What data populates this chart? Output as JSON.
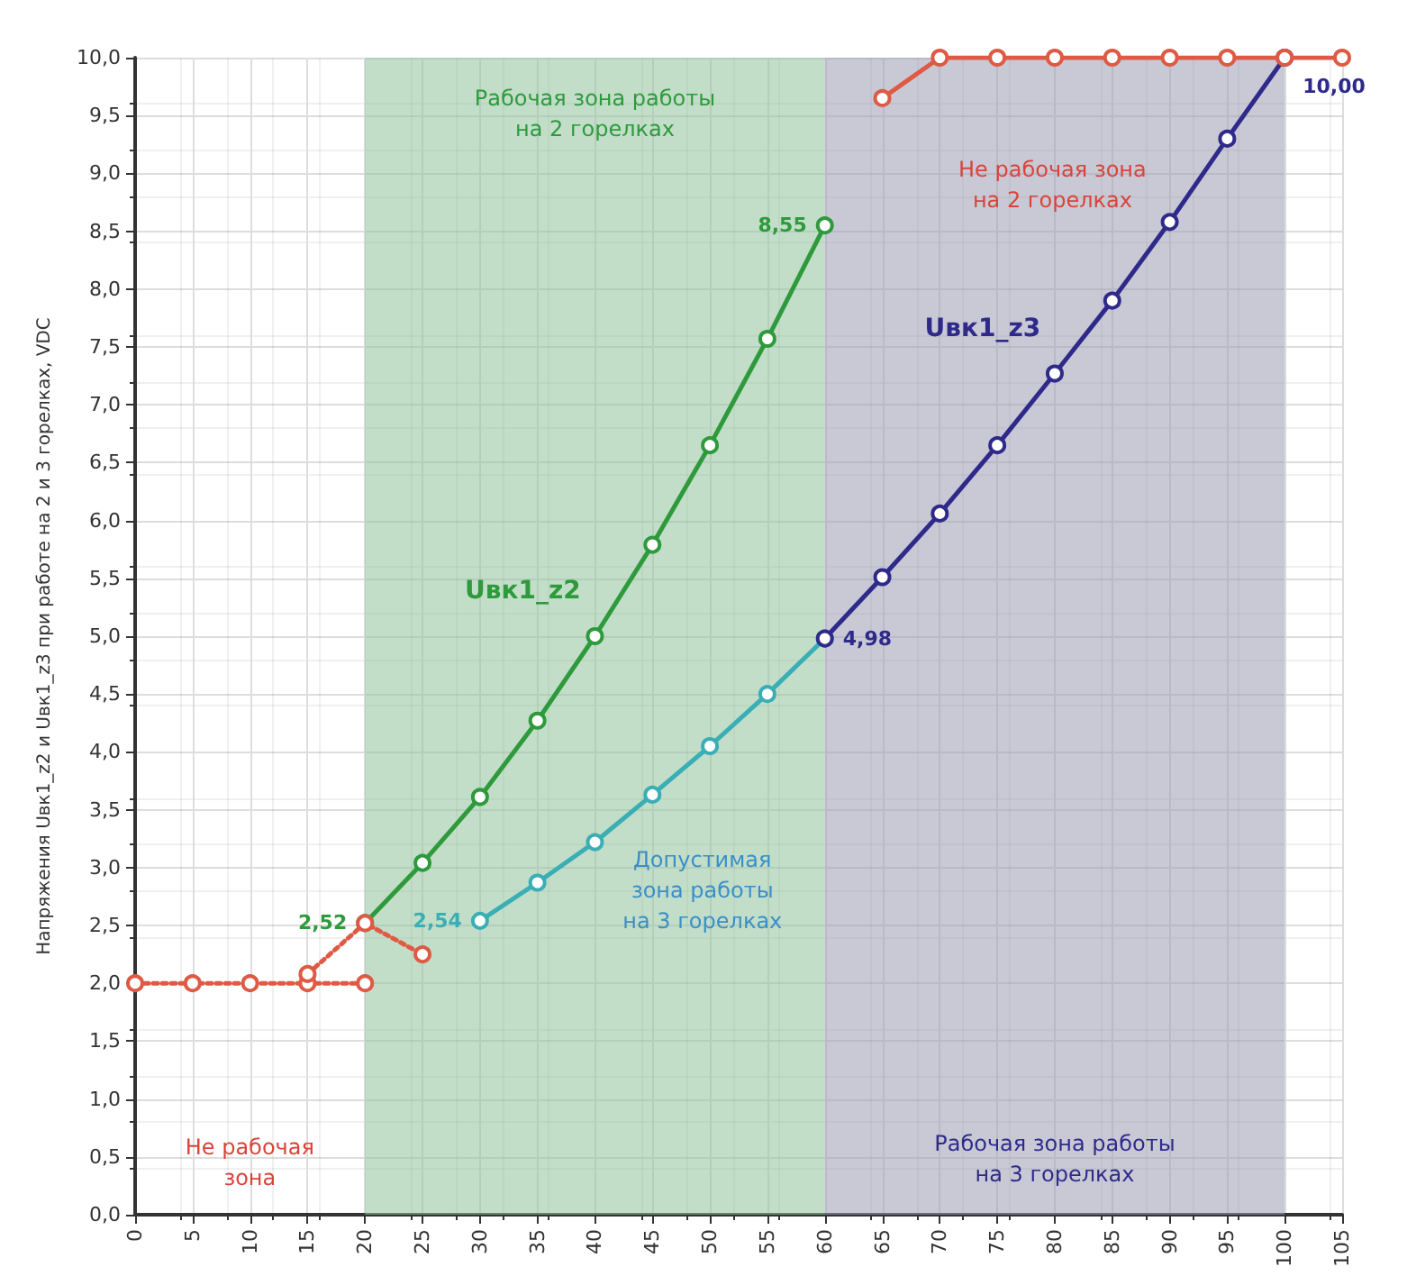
{
  "chart_data": {
    "type": "line",
    "ylabel": "Напряжения Uвк1_z2 и Uвк1_z3 при работе на 2 и 3 горелках, VDC",
    "xlim": [
      0,
      105
    ],
    "xticks": [
      0,
      5,
      10,
      15,
      20,
      25,
      30,
      35,
      40,
      45,
      50,
      55,
      60,
      65,
      70,
      75,
      80,
      85,
      90,
      95,
      100,
      105
    ],
    "ylim": [
      0,
      10
    ],
    "yticks": [
      {
        "value": 0,
        "label": "0,0"
      },
      {
        "value": 0.5,
        "label": "0,5"
      },
      {
        "value": 1,
        "label": "1,0"
      },
      {
        "value": 1.5,
        "label": "1,5"
      },
      {
        "value": 2,
        "label": "2,0"
      },
      {
        "value": 2.5,
        "label": "2,5"
      },
      {
        "value": 3,
        "label": "3,0"
      },
      {
        "value": 3.5,
        "label": "3,5"
      },
      {
        "value": 4,
        "label": "4,0"
      },
      {
        "value": 4.5,
        "label": "4,5"
      },
      {
        "value": 5,
        "label": "5,0"
      },
      {
        "value": 5.5,
        "label": "5,5"
      },
      {
        "value": 6,
        "label": "6,0"
      },
      {
        "value": 6.5,
        "label": "6,5"
      },
      {
        "value": 7,
        "label": "7,0"
      },
      {
        "value": 7.5,
        "label": "7,5"
      },
      {
        "value": 8,
        "label": "8,0"
      },
      {
        "value": 8.5,
        "label": "8,5"
      },
      {
        "value": 9,
        "label": "9,0"
      },
      {
        "value": 9.5,
        "label": "9,5"
      },
      {
        "value": 10,
        "label": "10,0"
      }
    ],
    "grid": true,
    "legend": false,
    "marker": "circle",
    "bands": [
      {
        "axis": "x",
        "from": 20,
        "to": 60,
        "color": "#8fc39c",
        "label": "Рабочая зона работы\nна 2 горелках"
      },
      {
        "axis": "x",
        "from": 60,
        "to": 100,
        "color": "#9d9db5",
        "label": "Рабочая зона работы\nна 3 горелках"
      }
    ],
    "series": [
      {
        "name": "Uвк1_z2",
        "color": "#2e9a3c",
        "x": [
          20,
          25,
          30,
          35,
          40,
          45,
          50,
          55,
          60
        ],
        "values": [
          2.52,
          3.04,
          3.61,
          4.27,
          5.0,
          5.79,
          6.65,
          7.57,
          8.55
        ],
        "value_labels": [
          "2,52",
          null,
          null,
          null,
          null,
          null,
          null,
          null,
          "8,55"
        ]
      },
      {
        "color": "#3aaeb5",
        "x": [
          30,
          35,
          40,
          45,
          50,
          55,
          60
        ],
        "values": [
          2.54,
          2.87,
          3.22,
          3.63,
          4.05,
          4.5,
          4.98
        ],
        "value_labels": [
          "2,54",
          null,
          null,
          null,
          null,
          null,
          null
        ]
      },
      {
        "name": "Uвк1_z3",
        "color": "#2f2a8a",
        "x": [
          60,
          65,
          70,
          75,
          80,
          85,
          90,
          95,
          100
        ],
        "values": [
          4.98,
          5.51,
          6.06,
          6.65,
          7.27,
          7.9,
          8.58,
          9.3,
          10.0
        ],
        "value_labels": [
          "4,98",
          null,
          null,
          null,
          null,
          null,
          null,
          null,
          "10,00"
        ]
      },
      {
        "color": "#de5a44",
        "line_style": "dotted",
        "x": [
          0,
          5,
          10,
          15,
          20
        ],
        "values": [
          2.0,
          2.0,
          2.0,
          2.0,
          2.0
        ]
      },
      {
        "color": "#de5a44",
        "line_style": "dotted",
        "x": [
          15,
          20,
          25
        ],
        "values": [
          2.08,
          2.52,
          2.25
        ]
      },
      {
        "color": "#de5a44",
        "x": [
          65,
          70,
          75,
          80,
          85,
          90,
          95,
          100,
          105
        ],
        "values": [
          9.65,
          10.0,
          10.0,
          10.0,
          10.0,
          10.0,
          10.0,
          10.0,
          10.0
        ]
      }
    ],
    "annotations": [
      "Не рабочая зона\nна 2 горелках",
      "Допустимая\nзона работы\nна 3 горелках",
      "Не рабочая\nзона"
    ]
  }
}
